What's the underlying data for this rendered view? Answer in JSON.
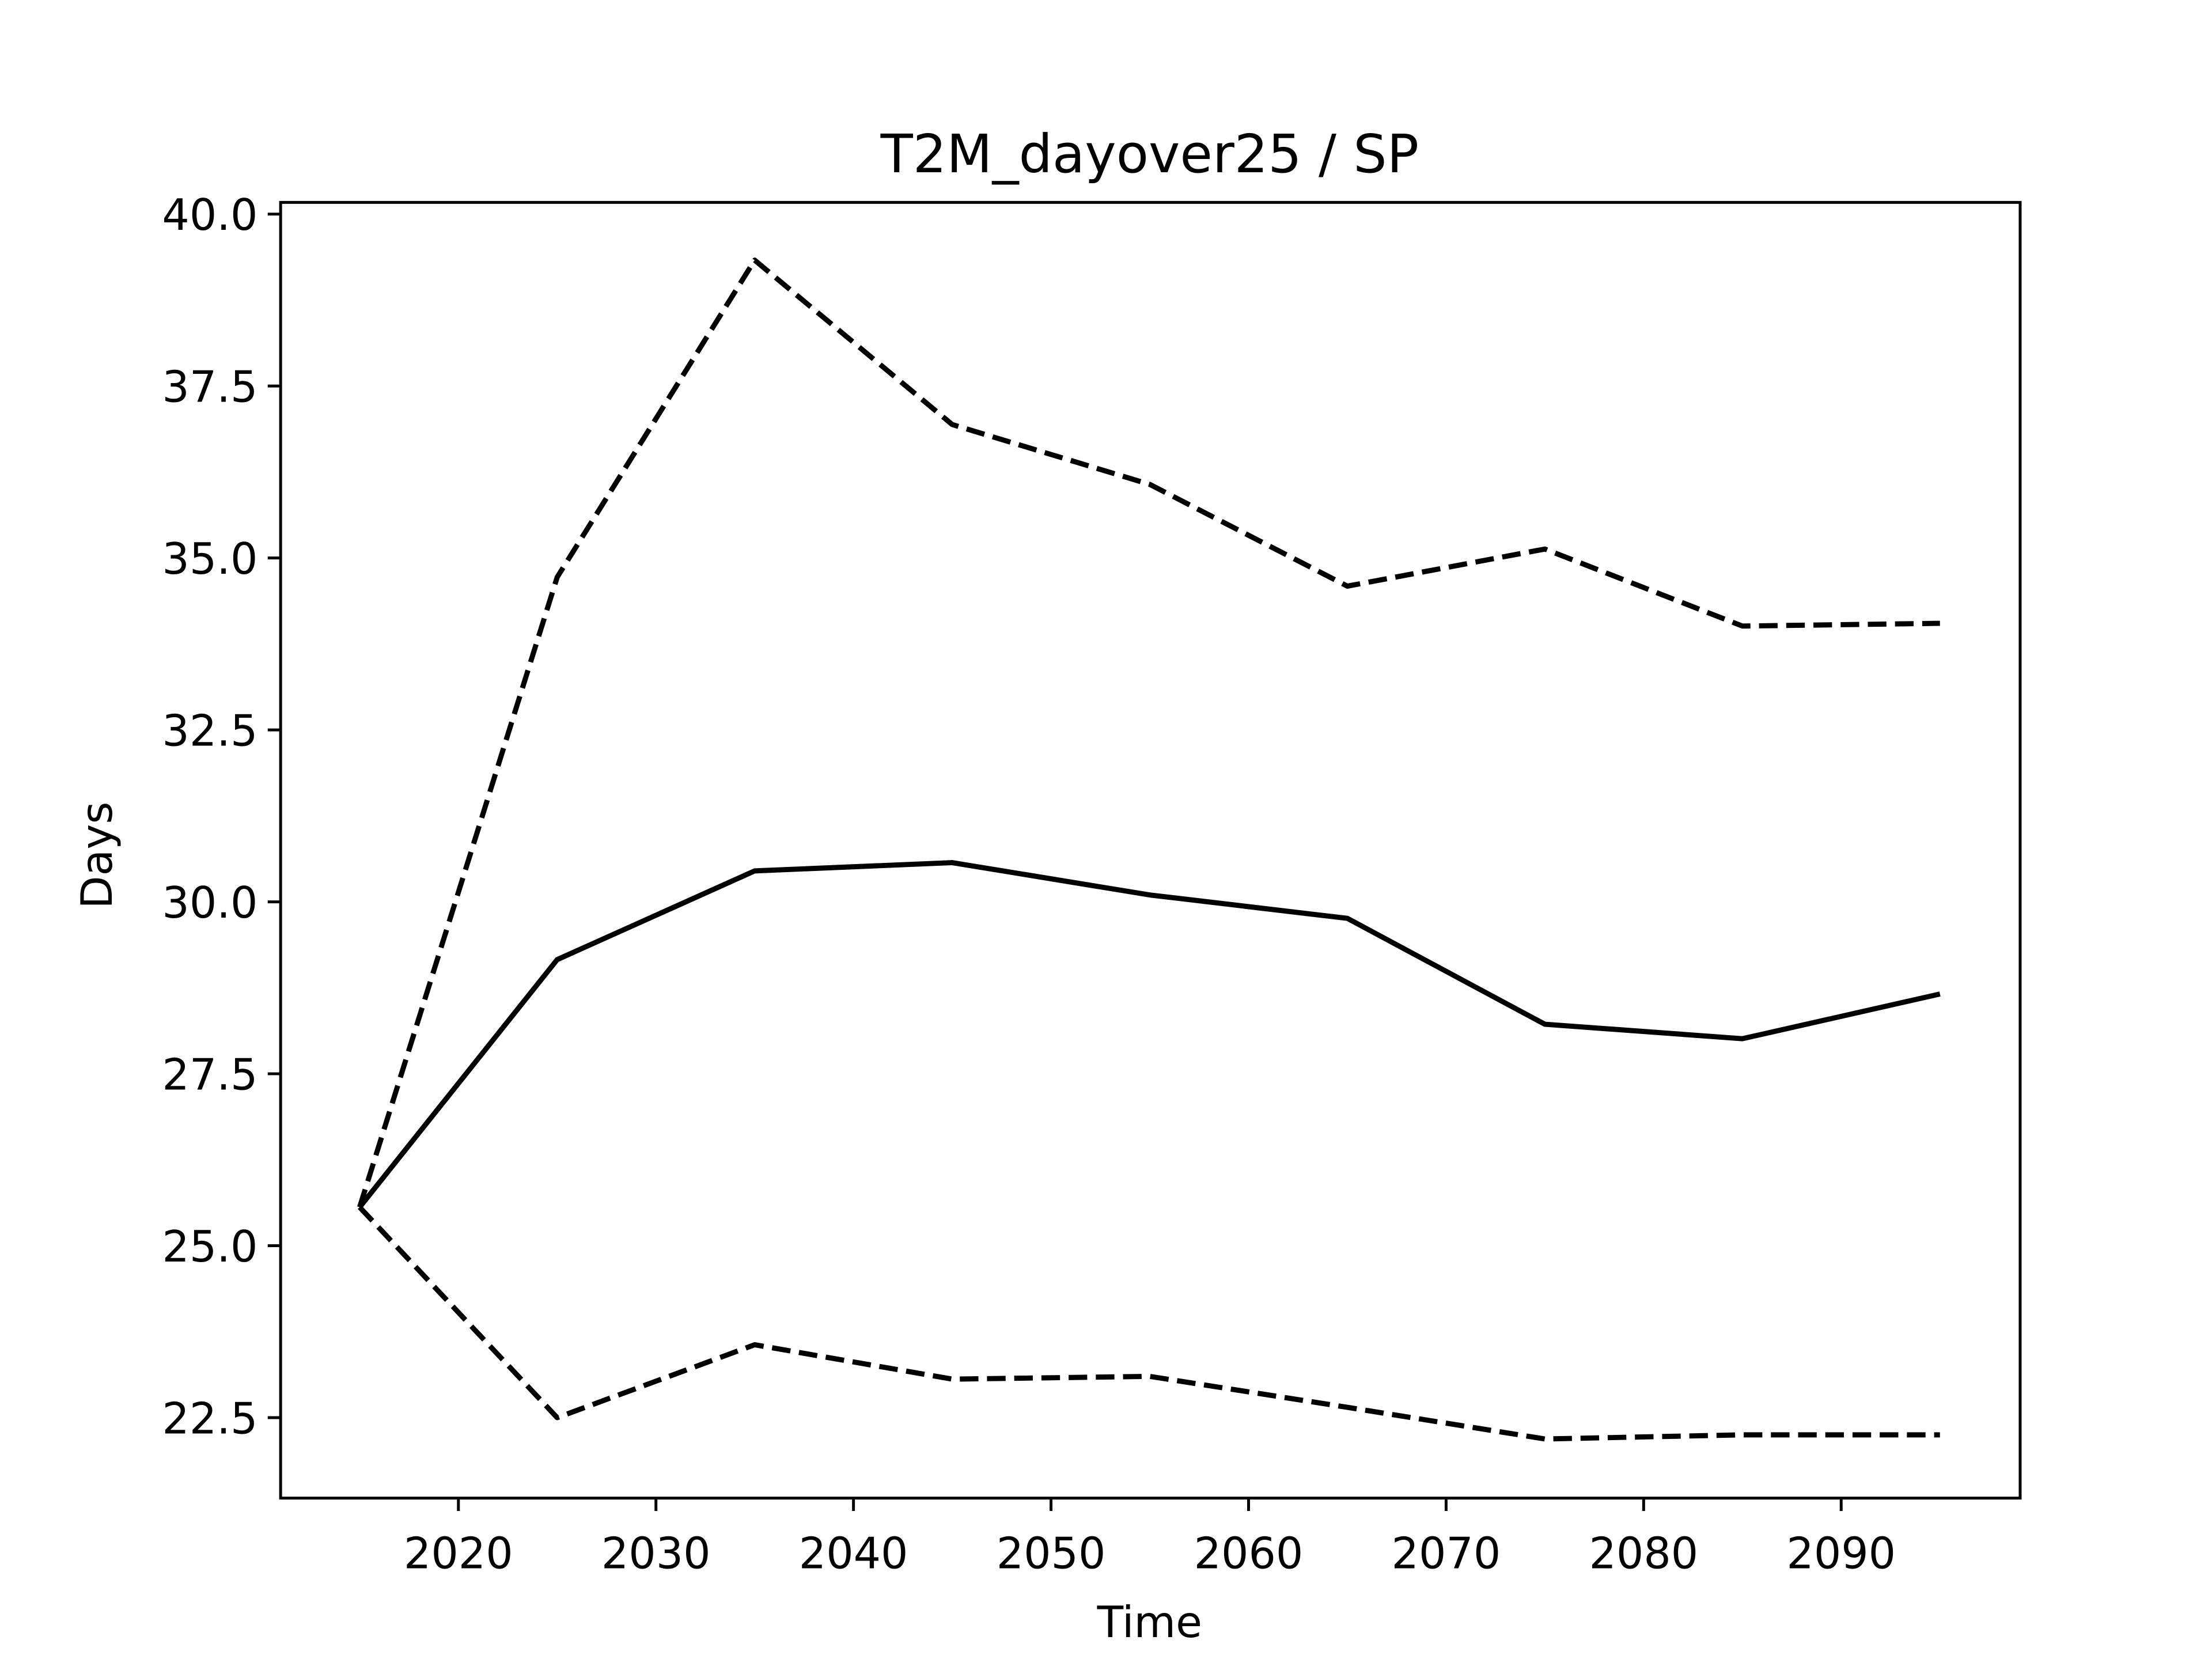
{
  "chart_data": {
    "type": "line",
    "title": "T2M_dayover25 / SP",
    "x_label": "Time",
    "y_label": "Days",
    "x": [
      2015,
      2025,
      2035,
      2045,
      2055,
      2065,
      2075,
      2085,
      2095
    ],
    "series": [
      {
        "color": "#000000",
        "linestyle": "solid",
        "values": [
          25.56,
          29.16,
          30.45,
          30.57,
          30.1,
          29.76,
          28.22,
          28.01,
          28.66
        ]
      },
      {
        "color": "#000000",
        "linestyle": "dashed",
        "values": [
          25.56,
          34.72,
          39.33,
          36.94,
          36.07,
          34.59,
          35.13,
          34.01,
          34.05
        ]
      },
      {
        "color": "#000000",
        "linestyle": "dashed",
        "values": [
          25.56,
          22.5,
          23.56,
          23.06,
          23.1,
          22.65,
          22.19,
          22.25,
          22.25
        ]
      }
    ],
    "xlim": [
      2011,
      2099.06
    ],
    "ylim": [
      21.33,
      40.17
    ],
    "xticks": [
      2020,
      2030,
      2040,
      2050,
      2060,
      2070,
      2080,
      2090
    ],
    "yticks": [
      22.5,
      {
        "value": 25,
        "label": "25.0"
      },
      27.5,
      {
        "value": 30,
        "label": "30.0"
      },
      32.5,
      {
        "value": 35,
        "label": "35.0"
      },
      37.5,
      {
        "value": 40,
        "label": "40.0"
      }
    ],
    "grid": false
  }
}
